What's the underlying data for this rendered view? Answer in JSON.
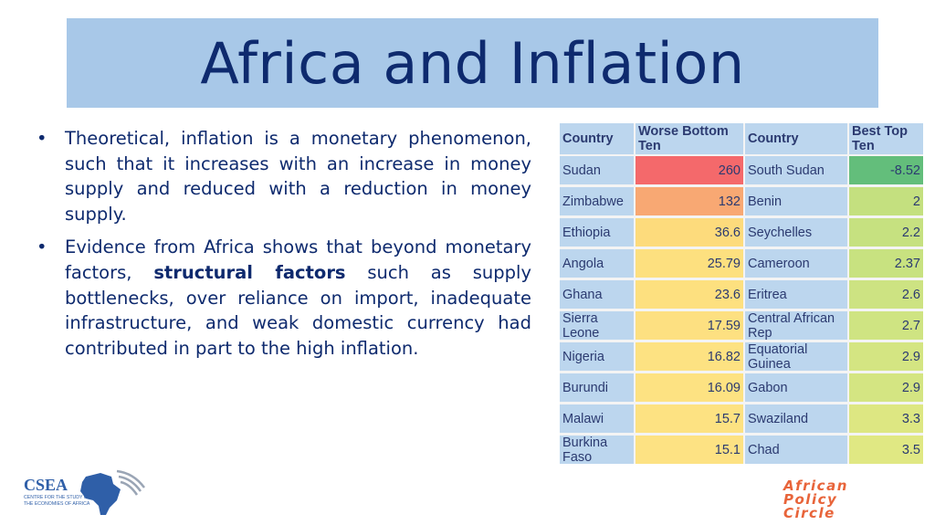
{
  "slide": {
    "title": "Africa and Inflation",
    "bullets": [
      {
        "marker": "•",
        "text": "Theoretical, inflation is a monetary phenomenon, such that it increases with an increase in money supply and reduced with a reduction in money supply."
      },
      {
        "marker": "•",
        "pre": "Evidence from Africa shows that beyond monetary factors, ",
        "bold": "structural factors",
        "post": " such as supply bottlenecks, over reliance on import, inadequate infrastructure, and  weak domestic currency had contributed in part to the high inflation."
      }
    ]
  },
  "table": {
    "headers": [
      "Country",
      "Worse Bottom Ten",
      "Country",
      "Best Top Ten"
    ],
    "rows": [
      {
        "worst_country": "Sudan",
        "worst_value": "260",
        "best_country": "South Sudan",
        "best_value": "-8.52"
      },
      {
        "worst_country": "Zimbabwe",
        "worst_value": "132",
        "best_country": "Benin",
        "best_value": "2"
      },
      {
        "worst_country": "Ethiopia",
        "worst_value": "36.6",
        "best_country": "Seychelles",
        "best_value": "2.2"
      },
      {
        "worst_country": "Angola",
        "worst_value": "25.79",
        "best_country": "Cameroon",
        "best_value": "2.37"
      },
      {
        "worst_country": "Ghana",
        "worst_value": "23.6",
        "best_country": "Eritrea",
        "best_value": "2.6"
      },
      {
        "worst_country": "Sierra Leone",
        "worst_value": "17.59",
        "best_country": "Central African Rep",
        "best_value": "2.7"
      },
      {
        "worst_country": "Nigeria",
        "worst_value": "16.82",
        "best_country": "Equatorial Guinea",
        "best_value": "2.9"
      },
      {
        "worst_country": "Burundi",
        "worst_value": "16.09",
        "best_country": "Gabon",
        "best_value": "2.9"
      },
      {
        "worst_country": "Malawi",
        "worst_value": "15.7",
        "best_country": "Swaziland",
        "best_value": "3.3"
      },
      {
        "worst_country": "Burkina Faso",
        "worst_value": "15.1",
        "best_country": "Chad",
        "best_value": "3.5"
      }
    ],
    "worst_colors": [
      "#f4696b",
      "#f8a873",
      "#fddb7c",
      "#fde07f",
      "#fde07f",
      "#fde081",
      "#fde282",
      "#fde282",
      "#fde282",
      "#fde283"
    ],
    "best_colors": [
      "#63be7b",
      "#c4e07f",
      "#c6e180",
      "#c8e280",
      "#cde382",
      "#cfe482",
      "#d4e582",
      "#d4e582",
      "#dde782",
      "#e0e883"
    ]
  },
  "logos": {
    "csea": {
      "name": "CSEA",
      "tagline_1": "CENTRE FOR THE STUDY OF",
      "tagline_2": "THE ECONOMIES OF AFRICA"
    },
    "apc": {
      "line_1": "African",
      "line_2": "Policy",
      "line_3": "Circle"
    }
  },
  "colors": {
    "title_band": "#a8c8e8",
    "title_text": "#0e2a6e",
    "header_bg": "#bcd6ee"
  }
}
